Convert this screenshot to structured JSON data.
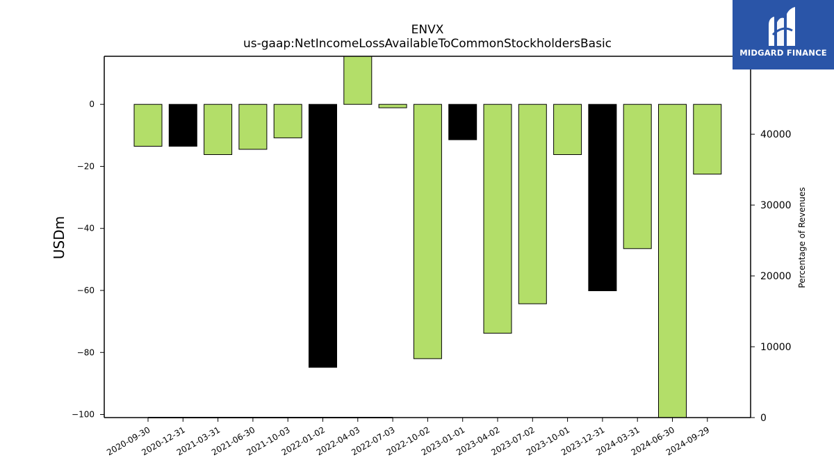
{
  "brand": {
    "name": "MIDGARD FINANCE"
  },
  "chart_data": {
    "type": "bar",
    "title": "ENVX",
    "subtitle": "us-gaap:NetIncomeLossAvailableToCommonStockholdersBasic",
    "ylabel": "USDm",
    "ylabel_right": "Percentage of Revenues",
    "ylim": [
      -101,
      15.5
    ],
    "yticks": [
      0,
      -20,
      -40,
      -60,
      -80,
      -100
    ],
    "ylim_right": [
      0,
      51000
    ],
    "yticks_right": [
      0,
      10000,
      20000,
      30000,
      40000
    ],
    "categories": [
      "2020-09-30",
      "2020-12-31",
      "2021-03-31",
      "2021-06-30",
      "2021-10-03",
      "2022-01-02",
      "2022-04-03",
      "2022-07-03",
      "2022-10-02",
      "2023-01-01",
      "2023-04-02",
      "2023-07-02",
      "2023-10-01",
      "2023-12-31",
      "2024-03-31",
      "2024-06-30",
      "2024-09-29"
    ],
    "values": [
      -13.5,
      -13.5,
      -16.2,
      -14.5,
      -10.8,
      -84.8,
      17.0,
      -1.1,
      -82.0,
      -11.4,
      -73.8,
      -64.3,
      -16.2,
      -60.1,
      -46.5,
      -103.0,
      -22.5
    ],
    "colors": [
      "#b3de69",
      "#000000",
      "#b3de69",
      "#b3de69",
      "#b3de69",
      "#000000",
      "#b3de69",
      "#b3de69",
      "#b3de69",
      "#000000",
      "#b3de69",
      "#b3de69",
      "#b3de69",
      "#000000",
      "#b3de69",
      "#b3de69",
      "#b3de69"
    ],
    "percent_of_revenue_line": {
      "x_start": "2020-09-30",
      "x_end": "2022-07-03",
      "values": [
        0,
        0,
        0,
        0,
        0,
        0,
        0,
        0
      ]
    },
    "grid": false,
    "legend": "none"
  }
}
